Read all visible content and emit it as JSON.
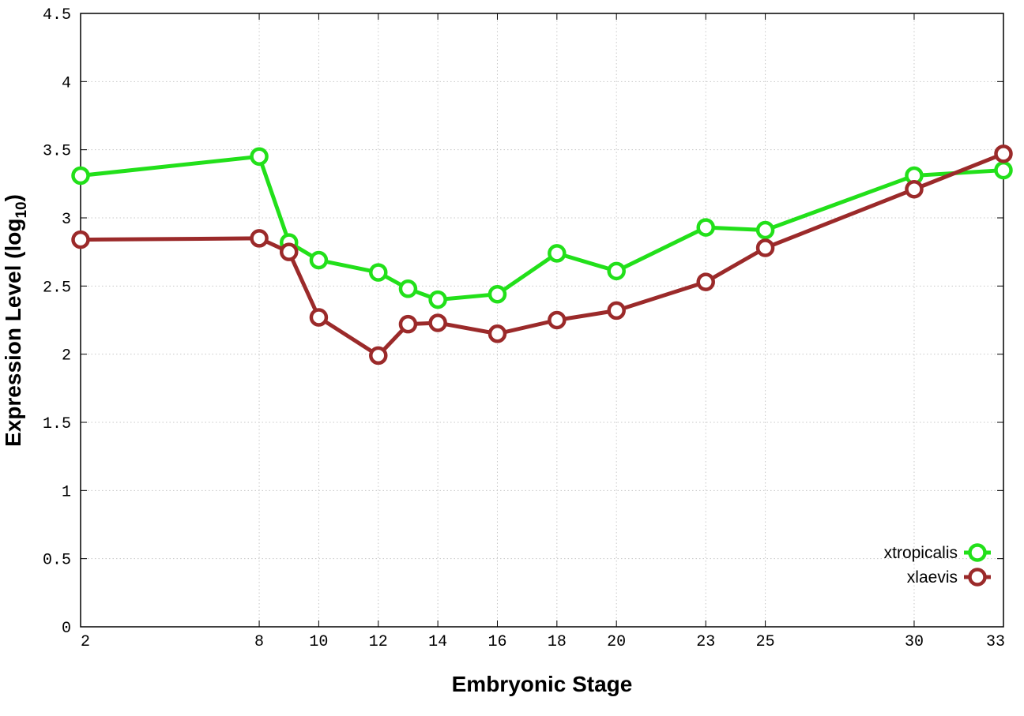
{
  "chart_data": {
    "type": "line",
    "title": "",
    "xlabel": "Embryonic Stage",
    "ylabel_main": "Expression Level (log",
    "ylabel_sub": "10",
    "ylabel_close": ")",
    "x": [
      2,
      8,
      9,
      10,
      12,
      13,
      14,
      16,
      18,
      20,
      23,
      25,
      30,
      33
    ],
    "xticks": [
      "2",
      "8",
      "10",
      "12",
      "14",
      "16",
      "18",
      "20",
      "23",
      "25",
      "30",
      "33"
    ],
    "xtick_values": [
      2,
      8,
      10,
      12,
      14,
      16,
      18,
      20,
      23,
      25,
      30,
      33
    ],
    "ylim": [
      0,
      4.5
    ],
    "yticks": [
      "0",
      "0.5",
      "1",
      "1.5",
      "2",
      "2.5",
      "3",
      "3.5",
      "4",
      "4.5"
    ],
    "ytick_values": [
      0,
      0.5,
      1,
      1.5,
      2,
      2.5,
      3,
      3.5,
      4,
      4.5
    ],
    "grid": true,
    "legend_position": "bottom-right",
    "series": [
      {
        "name": "xtropicalis",
        "color": "#22e01a",
        "values": [
          3.31,
          3.45,
          2.82,
          2.69,
          2.6,
          2.48,
          2.4,
          2.44,
          2.74,
          2.61,
          2.93,
          2.91,
          3.31,
          3.35
        ]
      },
      {
        "name": "xlaevis",
        "color": "#9b2a2a",
        "values": [
          2.84,
          2.85,
          2.75,
          2.27,
          1.99,
          2.22,
          2.23,
          2.15,
          2.25,
          2.32,
          2.53,
          2.78,
          3.21,
          3.47
        ]
      }
    ]
  }
}
